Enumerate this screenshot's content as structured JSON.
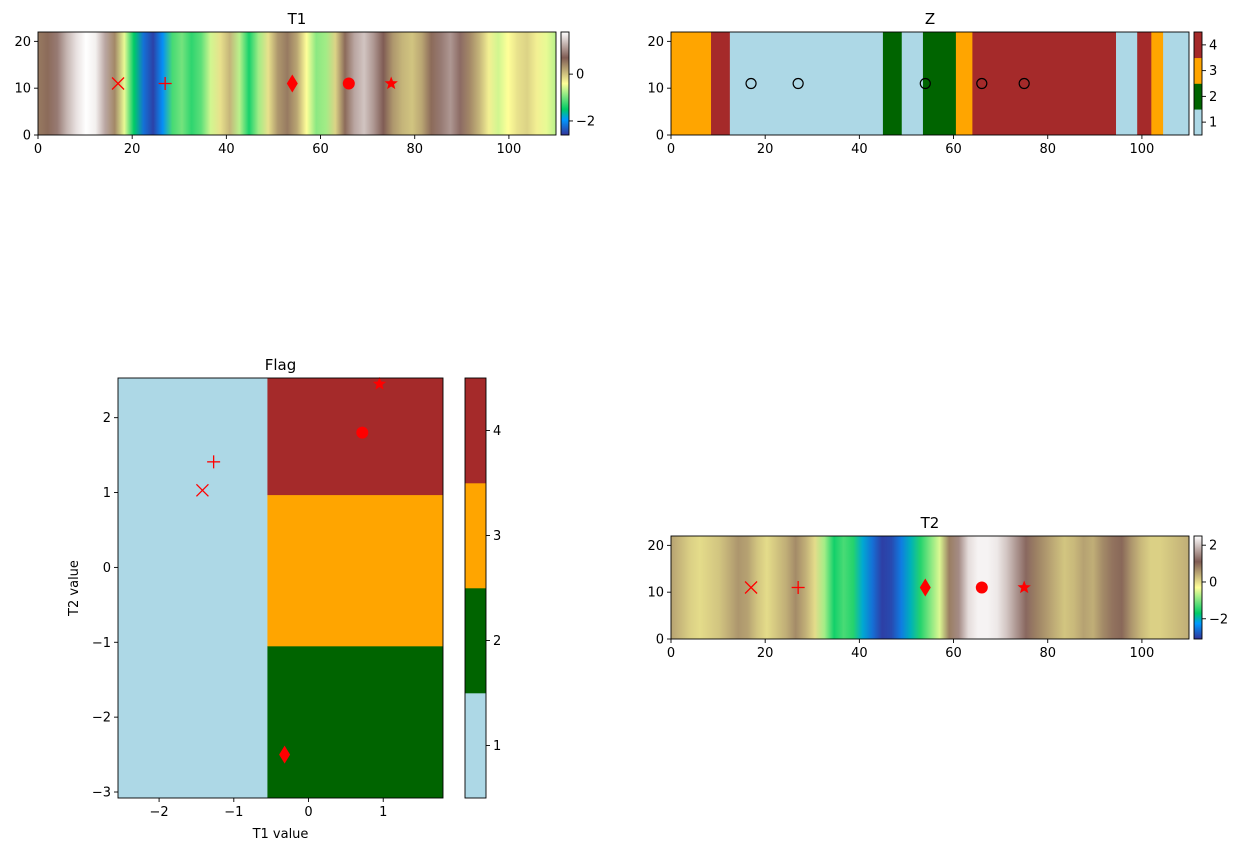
{
  "chart_data": [
    {
      "type": "heatmap",
      "title": "T1",
      "xlim": [
        0,
        110
      ],
      "ylim": [
        0,
        22
      ],
      "x_ticks": [
        0,
        20,
        40,
        60,
        80,
        100
      ],
      "y_ticks": [
        0,
        10,
        20
      ],
      "colormap": "terrain",
      "colorbar": {
        "range": [
          -2.6,
          1.8
        ],
        "ticks": [
          -2,
          0
        ]
      },
      "field_values": [
        0.5,
        0.6,
        0.9,
        1.3,
        1.6,
        1.8,
        1.7,
        1.2,
        0.4,
        -0.5,
        -1.5,
        -2.2,
        -2.5,
        -2.0,
        -1.2,
        -1.0,
        -1.3,
        -1.1,
        -0.6,
        -0.2,
        0.1,
        -0.7,
        -1.4,
        -0.8,
        -0.2,
        0.3,
        0.5,
        0.2,
        -0.4,
        -0.9,
        -0.8,
        -0.1,
        0.6,
        1.2,
        1.4,
        1.1,
        0.7,
        0.3,
        0.1,
        0.0,
        0.2,
        0.6,
        0.9,
        1.1,
        0.8,
        0.4,
        0.1,
        -0.3,
        -0.6,
        -0.4,
        -0.2,
        -0.1,
        -0.3,
        -0.5,
        -0.7
      ],
      "markers": [
        {
          "x": 17,
          "y": 11,
          "marker": "x",
          "color": "#ff0000"
        },
        {
          "x": 27,
          "y": 11,
          "marker": "+",
          "color": "#ff0000"
        },
        {
          "x": 54,
          "y": 11,
          "marker": "diamond",
          "color": "#ff0000"
        },
        {
          "x": 66,
          "y": 11,
          "marker": "circle",
          "color": "#ff0000"
        },
        {
          "x": 75,
          "y": 11,
          "marker": "star",
          "color": "#ff0000"
        }
      ]
    },
    {
      "type": "heatmap",
      "title": "Z",
      "xlim": [
        0,
        110
      ],
      "ylim": [
        0,
        22
      ],
      "x_ticks": [
        0,
        20,
        40,
        60,
        80,
        100
      ],
      "y_ticks": [
        0,
        10,
        20
      ],
      "colors": {
        "1": "#add8e6",
        "2": "#006400",
        "3": "#ffa500",
        "4": "#a52a2a"
      },
      "colorbar": {
        "range": [
          0.5,
          4.5
        ],
        "ticks": [
          1,
          2,
          3,
          4
        ]
      },
      "segments": [
        {
          "x0": 0,
          "x1": 8.5,
          "v": 3
        },
        {
          "x0": 8.5,
          "x1": 12.5,
          "v": 4
        },
        {
          "x0": 12.5,
          "x1": 45,
          "v": 1
        },
        {
          "x0": 45,
          "x1": 49,
          "v": 2
        },
        {
          "x0": 49,
          "x1": 53.5,
          "v": 1
        },
        {
          "x0": 53.5,
          "x1": 60.5,
          "v": 2
        },
        {
          "x0": 60.5,
          "x1": 64,
          "v": 3
        },
        {
          "x0": 64,
          "x1": 94.5,
          "v": 4
        },
        {
          "x0": 94.5,
          "x1": 99,
          "v": 1
        },
        {
          "x0": 99,
          "x1": 102,
          "v": 4
        },
        {
          "x0": 102,
          "x1": 104.5,
          "v": 3
        },
        {
          "x0": 104.5,
          "x1": 110,
          "v": 1
        }
      ],
      "markers": [
        {
          "x": 17,
          "y": 11,
          "marker": "open-circle",
          "color": "#000000"
        },
        {
          "x": 27,
          "y": 11,
          "marker": "open-circle",
          "color": "#000000"
        },
        {
          "x": 54,
          "y": 11,
          "marker": "open-circle",
          "color": "#000000"
        },
        {
          "x": 66,
          "y": 11,
          "marker": "open-circle",
          "color": "#000000"
        },
        {
          "x": 75,
          "y": 11,
          "marker": "open-circle",
          "color": "#000000"
        }
      ]
    },
    {
      "type": "heatmap",
      "title": "Flag",
      "xlabel": "T1 value",
      "ylabel": "T2 value",
      "xlim": [
        -2.55,
        1.8
      ],
      "ylim": [
        -3.08,
        2.53
      ],
      "x_ticks": [
        -2,
        -1,
        0,
        1
      ],
      "y_ticks": [
        -3,
        -2,
        -1,
        0,
        1,
        2
      ],
      "colors": {
        "1": "#add8e6",
        "2": "#006400",
        "3": "#ffa500",
        "4": "#a52a2a"
      },
      "colorbar": {
        "range": [
          0.5,
          4.5
        ],
        "ticks": [
          1,
          2,
          3,
          4
        ]
      },
      "regions": [
        {
          "x0": -2.55,
          "x1": -0.55,
          "y0": -3.08,
          "y1": 2.53,
          "v": 1
        },
        {
          "x0": -0.55,
          "x1": 1.8,
          "y0": -3.08,
          "y1": -1.05,
          "v": 2
        },
        {
          "x0": -0.55,
          "x1": 1.8,
          "y0": -1.05,
          "y1": 0.97,
          "v": 3
        },
        {
          "x0": -0.55,
          "x1": 1.8,
          "y0": 0.97,
          "y1": 2.53,
          "v": 4
        }
      ],
      "markers": [
        {
          "x": -1.42,
          "y": 1.03,
          "marker": "x",
          "color": "#ff0000"
        },
        {
          "x": -1.27,
          "y": 1.41,
          "marker": "+",
          "color": "#ff0000"
        },
        {
          "x": -0.32,
          "y": -2.5,
          "marker": "diamond",
          "color": "#ff0000"
        },
        {
          "x": 0.72,
          "y": 1.8,
          "marker": "circle",
          "color": "#ff0000"
        },
        {
          "x": 0.95,
          "y": 2.45,
          "marker": "star",
          "color": "#ff0000"
        }
      ]
    },
    {
      "type": "heatmap",
      "title": "T2",
      "xlim": [
        0,
        110
      ],
      "ylim": [
        0,
        22
      ],
      "x_ticks": [
        0,
        20,
        40,
        60,
        80,
        100
      ],
      "y_ticks": [
        0,
        10,
        20
      ],
      "colormap": "terrain",
      "colorbar": {
        "range": [
          -3.1,
          2.5
        ],
        "ticks": [
          -2,
          0,
          2
        ]
      },
      "field_values": [
        0.5,
        0.3,
        0.1,
        0.0,
        0.1,
        0.2,
        0.4,
        0.6,
        0.5,
        0.2,
        0.0,
        0.2,
        0.4,
        0.7,
        0.4,
        0.0,
        -0.8,
        -1.6,
        -1.3,
        -1.5,
        -2.1,
        -2.6,
        -3.0,
        -2.9,
        -2.5,
        -2.0,
        -1.5,
        -1.0,
        -0.5,
        0.8,
        1.5,
        2.2,
        2.4,
        2.4,
        2.3,
        2.0,
        1.6,
        1.2,
        0.8,
        0.6,
        0.4,
        0.2,
        0.3,
        0.5,
        0.4,
        0.7,
        0.9,
        1.0,
        0.6,
        0.3,
        0.1,
        0.1,
        0.2,
        0.3,
        0.4
      ],
      "markers": [
        {
          "x": 17,
          "y": 11,
          "marker": "x",
          "color": "#ff0000"
        },
        {
          "x": 27,
          "y": 11,
          "marker": "+",
          "color": "#ff0000"
        },
        {
          "x": 54,
          "y": 11,
          "marker": "diamond",
          "color": "#ff0000"
        },
        {
          "x": 66,
          "y": 11,
          "marker": "circle",
          "color": "#ff0000"
        },
        {
          "x": 75,
          "y": 11,
          "marker": "star",
          "color": "#ff0000"
        }
      ]
    }
  ]
}
